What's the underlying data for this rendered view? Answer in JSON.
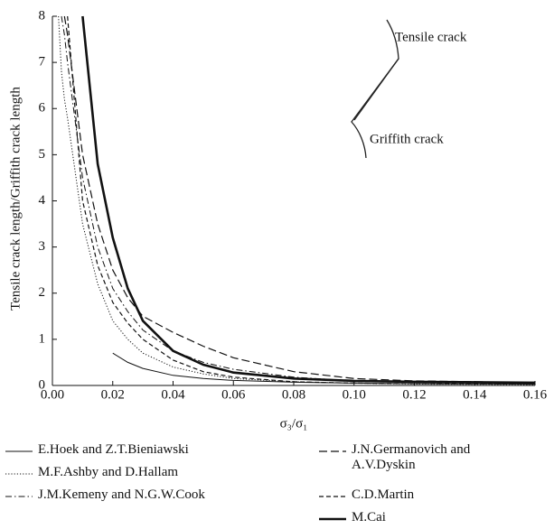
{
  "chart_data": {
    "type": "line",
    "xlabel": "σ₃/σ₁",
    "ylabel": "Tensile crack length/Griffith crack length",
    "annotations": [
      "Tensile crack",
      "Griffith crack"
    ],
    "x": [
      0.002,
      0.003,
      0.004,
      0.005,
      0.01,
      0.015,
      0.02,
      0.025,
      0.03,
      0.04,
      0.05,
      0.06,
      0.08,
      0.1,
      0.12,
      0.16
    ],
    "xlim": [
      0,
      0.16
    ],
    "xticks": [
      {
        "value": 0,
        "label": "0.00"
      },
      0.02,
      0.04,
      0.06,
      0.08,
      {
        "value": 0.1,
        "label": "0.10"
      },
      0.12,
      0.14,
      0.16
    ],
    "ylim": [
      0,
      8
    ],
    "yticks": [
      0,
      1,
      2,
      3,
      4,
      5,
      6,
      7,
      8
    ],
    "grid": false,
    "series": [
      {
        "name": "E.Hoek and Z.T.Bieniawski",
        "color": "#111111",
        "style": "solid",
        "width": 1,
        "values": [
          null,
          null,
          null,
          null,
          null,
          null,
          0.7,
          0.5,
          0.37,
          0.22,
          0.15,
          0.11,
          0.07,
          0.05,
          0.04,
          0.03
        ]
      },
      {
        "name": "M.F.Ashby and D.Hallam",
        "color": "#111111",
        "style": "dotted",
        "width": 1,
        "values": [
          8,
          6.8,
          6.2,
          5.8,
          3.5,
          2.2,
          1.4,
          1.0,
          0.7,
          0.4,
          0.25,
          0.15,
          0.08,
          0.05,
          0.03,
          0.02
        ]
      },
      {
        "name": "J.M.Kemeny and N.G.W.Cook",
        "color": "#111111",
        "style": "dashdot",
        "width": 1,
        "values": [
          null,
          8,
          7.6,
          7,
          4.5,
          3,
          2.1,
          1.6,
          1.2,
          0.75,
          0.5,
          0.35,
          0.18,
          0.1,
          0.07,
          0.04
        ]
      },
      {
        "name": "J.N.Germanovich and A.V.Dyskin",
        "color": "#111111",
        "style": "longdash",
        "width": 1.2,
        "values": [
          null,
          null,
          8,
          7.6,
          5,
          3.5,
          2.5,
          1.9,
          1.5,
          1.15,
          0.85,
          0.6,
          0.3,
          0.15,
          0.1,
          0.06
        ]
      },
      {
        "name": "C.D.Martin",
        "color": "#111111",
        "style": "dashed",
        "width": 1.2,
        "values": [
          null,
          null,
          null,
          8,
          4,
          2.6,
          1.8,
          1.35,
          1.0,
          0.55,
          0.3,
          0.18,
          0.08,
          0.05,
          0.04,
          0.03
        ]
      },
      {
        "name": "M.Cai",
        "color": "#111111",
        "style": "solid",
        "width": 2.6,
        "values": [
          null,
          null,
          null,
          null,
          8,
          4.8,
          3.2,
          2.1,
          1.4,
          0.75,
          0.45,
          0.28,
          0.15,
          0.1,
          0.08,
          0.06
        ]
      }
    ]
  }
}
